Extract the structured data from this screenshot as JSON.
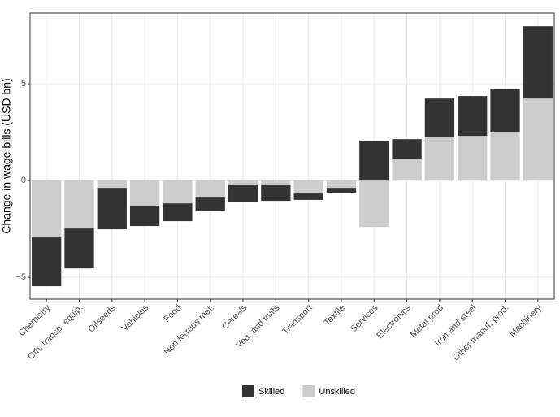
{
  "chart_data": {
    "type": "bar",
    "stacked": true,
    "y_label": "Change in wage bills (USD bn)",
    "categories": [
      "Chemistry",
      "Oth. transp. equip.",
      "Oilseeds",
      "Vehicles",
      "Food",
      "Non ferrous met.",
      "Cereals",
      "Veg. and fruits",
      "Transport",
      "Textile",
      "Services",
      "Electronics",
      "Metal prod",
      "Iron and steel",
      "Other manuf. prod.",
      "Machinery"
    ],
    "series": [
      {
        "name": "Unskilled",
        "color": "#cccccc",
        "values": [
          -2.94,
          -2.48,
          -0.38,
          -1.3,
          -1.18,
          -0.84,
          -0.2,
          -0.2,
          -0.67,
          -0.38,
          -2.4,
          1.13,
          2.23,
          2.31,
          2.48,
          4.24
        ]
      },
      {
        "name": "Skilled",
        "color": "#333333",
        "values": [
          -2.52,
          -2.06,
          -2.14,
          -1.05,
          -0.92,
          -0.71,
          -0.89,
          -0.85,
          -0.33,
          -0.25,
          2.06,
          1.01,
          2.01,
          2.06,
          2.27,
          3.74
        ]
      }
    ],
    "ylim": [
      -6.13,
      8.66
    ],
    "yticks": [
      {
        "value": -5,
        "label": "−5"
      },
      0,
      5
    ],
    "grid": true
  }
}
